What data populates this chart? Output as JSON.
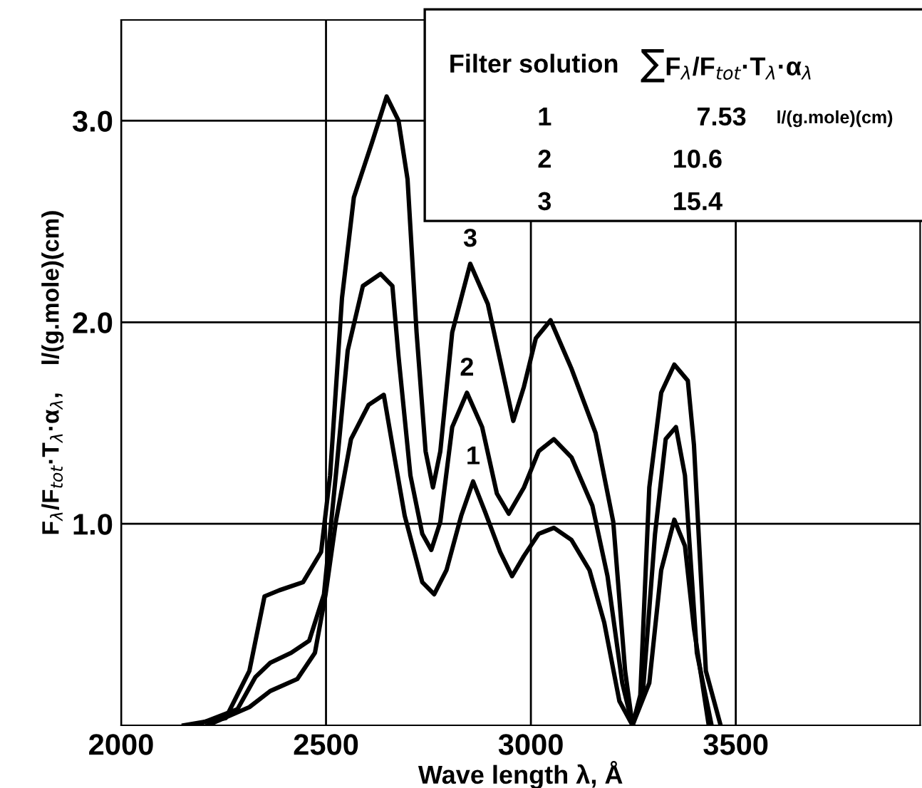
{
  "chart_data": {
    "type": "line",
    "xlabel": "Wave length λ, Å",
    "ylabel": "F$_{λ}$/F$_{tot}$·T$_{λ}$·α$_{λ}$,    l/(g.mole)(cm)",
    "xlim": [
      2000,
      3950
    ],
    "ylim": [
      0,
      3.5
    ],
    "xticks": [
      2000,
      2500,
      3000,
      3500
    ],
    "yticks": [
      {
        "value": 1,
        "label": "1.0"
      },
      {
        "value": 2,
        "label": "2.0"
      },
      {
        "value": 3,
        "label": "3.0"
      }
    ],
    "grid": true,
    "legend": false,
    "marker": "none",
    "line_style": "solid",
    "series": [
      {
        "color": "#000000",
        "x": [
          2211,
          2313,
          2364,
          2430,
          2473,
          2499,
          2524,
          2561,
          2604,
          2641,
          2662,
          2692,
          2735,
          2764,
          2794,
          2830,
          2859,
          2888,
          2925,
          2954,
          2983,
          3019,
          3056,
          3099,
          3143,
          3179,
          3216,
          3248,
          3289,
          3318,
          3350,
          3376,
          3398,
          3434
        ],
        "values": [
          0,
          0.09,
          0.17,
          0.23,
          0.36,
          0.65,
          1.01,
          1.42,
          1.59,
          1.64,
          1.39,
          1.04,
          0.71,
          0.65,
          0.77,
          1.04,
          1.21,
          1.06,
          0.86,
          0.74,
          0.84,
          0.95,
          0.98,
          0.92,
          0.77,
          0.51,
          0.12,
          0,
          0.21,
          0.77,
          1.02,
          0.89,
          0.48,
          0
        ]
      },
      {
        "color": "#000000",
        "x": [
          2182,
          2284,
          2328,
          2364,
          2415,
          2459,
          2495,
          2524,
          2553,
          2590,
          2633,
          2662,
          2677,
          2706,
          2735,
          2757,
          2779,
          2808,
          2844,
          2881,
          2917,
          2946,
          2983,
          3019,
          3056,
          3099,
          3150,
          3187,
          3223,
          3248,
          3274,
          3303,
          3329,
          3354,
          3376,
          3405,
          3441
        ],
        "values": [
          0,
          0.08,
          0.24,
          0.31,
          0.36,
          0.42,
          0.65,
          1.24,
          1.86,
          2.18,
          2.24,
          2.18,
          1.83,
          1.24,
          0.95,
          0.87,
          1.01,
          1.48,
          1.65,
          1.48,
          1.15,
          1.05,
          1.18,
          1.36,
          1.42,
          1.33,
          1.09,
          0.74,
          0.21,
          0,
          0.18,
          0.95,
          1.42,
          1.48,
          1.24,
          0.36,
          0
        ]
      },
      {
        "color": "#000000",
        "x": [
          2153,
          2255,
          2313,
          2350,
          2386,
          2444,
          2488,
          2510,
          2539,
          2568,
          2612,
          2648,
          2677,
          2699,
          2721,
          2743,
          2761,
          2779,
          2808,
          2852,
          2895,
          2939,
          2957,
          2983,
          3012,
          3048,
          3099,
          3158,
          3201,
          3230,
          3248,
          3267,
          3289,
          3318,
          3350,
          3383,
          3398,
          3427,
          3463
        ],
        "values": [
          0,
          0.035,
          0.27,
          0.64,
          0.67,
          0.71,
          0.86,
          1.24,
          2.12,
          2.62,
          2.89,
          3.12,
          3.0,
          2.71,
          1.95,
          1.36,
          1.18,
          1.36,
          1.95,
          2.29,
          2.09,
          1.68,
          1.51,
          1.68,
          1.92,
          2.01,
          1.77,
          1.45,
          1.01,
          0.27,
          0,
          0.15,
          1.18,
          1.65,
          1.79,
          1.71,
          1.39,
          0.27,
          0
        ]
      }
    ],
    "annotations": [
      "Filter solution",
      "∑F$_{λ}$/F$_{tot}$·T$_{λ}$·α$_{λ}$",
      "1",
      "7.53",
      "l/(g.mole)(cm)",
      "2",
      "10.6",
      "3",
      "15.4",
      {
        "text": "1",
        "x": 2859,
        "y": 1.21
      },
      {
        "text": "2",
        "x": 2844,
        "y": 1.65
      },
      {
        "text": "3",
        "x": 2852,
        "y": 2.29
      }
    ]
  }
}
